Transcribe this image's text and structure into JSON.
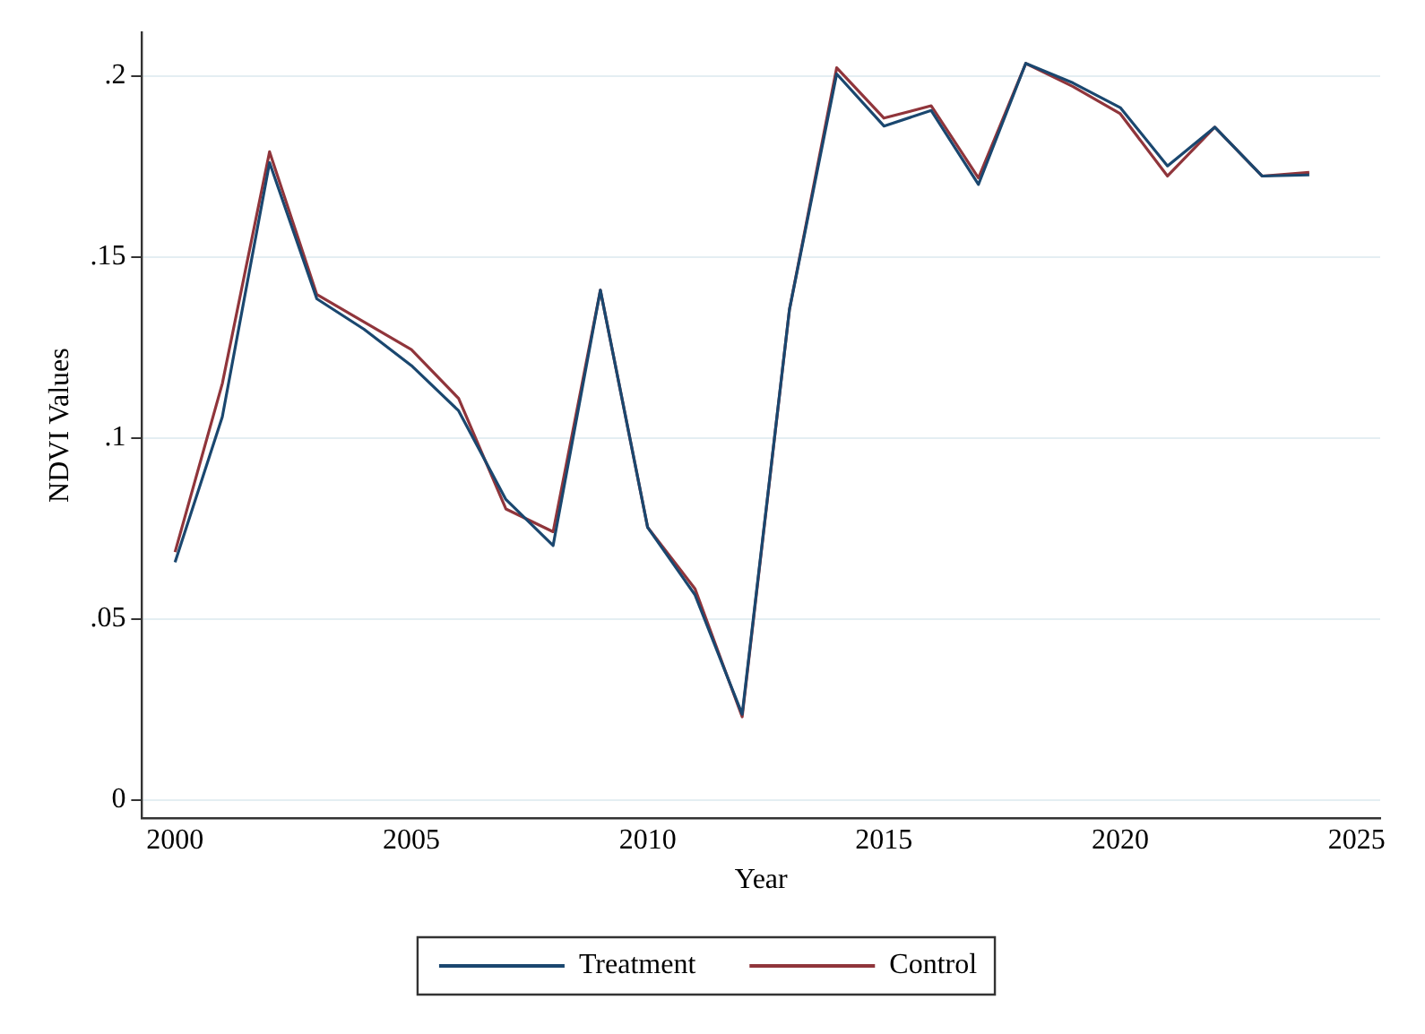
{
  "chart_data": {
    "type": "line",
    "xlabel": "Year",
    "ylabel": "NDVI Values",
    "x": [
      2000,
      2001,
      2002,
      2003,
      2004,
      2005,
      2006,
      2007,
      2008,
      2009,
      2010,
      2011,
      2012,
      2013,
      2014,
      2015,
      2016,
      2017,
      2018,
      2019,
      2020,
      2021,
      2022,
      2023,
      2024
    ],
    "series": [
      {
        "name": "Treatment",
        "color": "#1a476f",
        "values": [
          0.0657,
          0.1058,
          0.176,
          0.1384,
          0.13,
          0.12,
          0.1075,
          0.083,
          0.0703,
          0.1408,
          0.0753,
          0.0567,
          0.0237,
          0.1354,
          0.2005,
          0.1861,
          0.1904,
          0.17,
          0.2034,
          0.198,
          0.1912,
          0.1751,
          0.1858,
          0.1723,
          0.1726
        ]
      },
      {
        "name": "Control",
        "color": "#90353b",
        "values": [
          0.0685,
          0.115,
          0.179,
          0.1396,
          0.132,
          0.1244,
          0.1109,
          0.0804,
          0.0741,
          0.1408,
          0.0753,
          0.0584,
          0.023,
          0.1354,
          0.2022,
          0.1883,
          0.1917,
          0.1718,
          0.2034,
          0.197,
          0.1895,
          0.1723,
          0.1858,
          0.1723,
          0.1733
        ]
      }
    ],
    "xlim": [
      1999.3,
      2025.5
    ],
    "xticks": [
      2000,
      2005,
      2010,
      2015,
      2020,
      2025
    ],
    "ylim": [
      -0.005,
      0.212
    ],
    "yticks": [
      {
        "value": 0,
        "label": "0"
      },
      {
        "value": 0.05,
        "label": ".05"
      },
      {
        "value": 0.1,
        "label": ".1"
      },
      {
        "value": 0.15,
        "label": ".15"
      },
      {
        "value": 0.2,
        "label": ".2"
      }
    ],
    "grid": "y",
    "legend": "bottom",
    "marker": "none",
    "line_style": "solid"
  }
}
